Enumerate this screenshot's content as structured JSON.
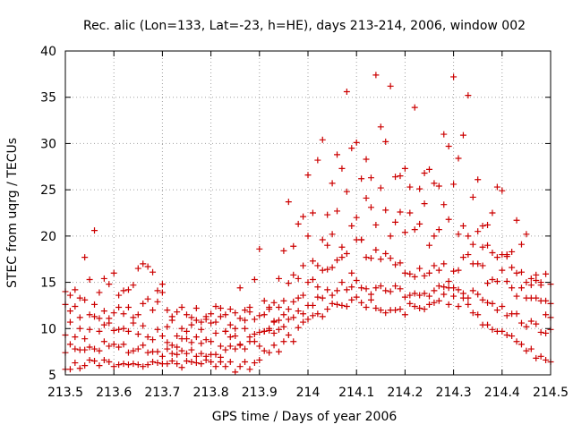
{
  "chart_data": {
    "type": "scatter",
    "title": "Rec. alic (Lon=133, Lat=-23, h=HE), days 213-214, 2006, window 002",
    "xlabel": "GPS time / Days of year 2006",
    "ylabel": "STEC from uqrg / TECUs",
    "xlim": [
      213.5,
      214.5
    ],
    "ylim": [
      5,
      40
    ],
    "x_ticks": [
      213.5,
      213.6,
      213.7,
      213.8,
      213.9,
      214.0,
      214.1,
      214.2,
      214.3,
      214.4,
      214.5
    ],
    "x_tick_labels": [
      "213.5",
      "213.6",
      "213.7",
      "213.8",
      "213.9",
      "214",
      "214.1",
      "214.2",
      "214.3",
      "214.4",
      "214.5"
    ],
    "y_ticks": [
      5,
      10,
      15,
      20,
      25,
      30,
      35,
      40
    ],
    "y_tick_labels": [
      "5",
      "10",
      "15",
      "20",
      "25",
      "30",
      "35",
      "40"
    ],
    "grid": true,
    "legend": "none",
    "marker": "plus",
    "marker_color": "#cc0000",
    "series": [
      {
        "x": [
          213.5,
          213.51,
          213.52,
          213.53,
          213.54,
          213.55,
          213.56,
          213.57,
          213.58,
          213.59,
          213.6,
          213.61,
          213.62,
          213.63,
          213.64,
          213.65,
          213.66,
          213.67,
          213.68,
          213.69,
          213.7,
          213.71,
          213.72,
          213.73,
          213.74,
          213.75,
          213.76,
          213.77,
          213.78,
          213.79,
          213.8,
          213.81,
          213.82,
          213.83,
          213.84,
          213.85,
          213.86,
          213.87,
          213.88,
          213.89,
          213.9,
          213.91,
          213.92,
          213.93,
          213.94,
          213.95,
          213.96,
          213.97,
          213.98,
          213.99,
          214.0,
          214.01,
          214.02,
          214.03,
          214.04,
          214.05,
          214.06,
          214.07,
          214.08,
          214.09,
          214.1,
          214.11,
          214.12,
          214.13,
          214.14,
          214.15,
          214.16,
          214.17,
          214.18,
          214.19,
          214.2,
          214.21,
          214.22,
          214.23,
          214.24,
          214.25,
          214.26,
          214.27,
          214.28,
          214.29,
          214.3,
          214.31,
          214.32,
          214.33,
          214.34,
          214.35,
          214.36,
          214.37,
          214.38,
          214.39,
          214.4,
          214.41,
          214.42,
          214.43,
          214.44,
          214.45,
          214.46,
          214.47,
          214.48,
          214.49,
          214.5
        ],
        "y": [
          14.0,
          13.6,
          14.2,
          13.3,
          17.7,
          15.3,
          20.6,
          13.9,
          15.4,
          14.8,
          16.0,
          13.6,
          14.1,
          14.2,
          14.7,
          16.5,
          17.0,
          16.7,
          16.1,
          14.1,
          14.8,
          12.0,
          11.3,
          11.8,
          12.3,
          11.5,
          11.2,
          12.2,
          10.7,
          11.0,
          11.6,
          12.4,
          12.2,
          11.5,
          12.1,
          11.7,
          14.4,
          12.0,
          12.3,
          15.3,
          18.6,
          13.0,
          12.3,
          12.8,
          15.4,
          18.4,
          23.7,
          18.9,
          21.3,
          22.1,
          26.6,
          22.5,
          28.2,
          30.4,
          22.3,
          25.7,
          28.8,
          27.3,
          35.6,
          29.5,
          30.1,
          26.2,
          28.3,
          26.3,
          37.4,
          31.8,
          30.2,
          36.2,
          26.4,
          26.5,
          27.3,
          25.3,
          33.9,
          25.1,
          26.8,
          27.2,
          25.7,
          25.4,
          31.0,
          29.7,
          37.2,
          28.4,
          30.9,
          35.2,
          24.2,
          26.1,
          21.1,
          21.2,
          22.5,
          25.3,
          24.9,
          18.0,
          18.3,
          21.7,
          19.1,
          20.2,
          15.4,
          15.8,
          15.0,
          15.9,
          14.8
        ]
      },
      {
        "x": [
          213.5,
          213.51,
          213.52,
          213.53,
          213.54,
          213.55,
          213.56,
          213.57,
          213.58,
          213.59,
          213.6,
          213.61,
          213.62,
          213.63,
          213.64,
          213.65,
          213.66,
          213.67,
          213.68,
          213.69,
          213.7,
          213.71,
          213.72,
          213.73,
          213.74,
          213.75,
          213.76,
          213.77,
          213.78,
          213.79,
          213.8,
          213.81,
          213.82,
          213.83,
          213.84,
          213.85,
          213.86,
          213.87,
          213.88,
          213.89,
          213.9,
          213.91,
          213.92,
          213.93,
          213.94,
          213.95,
          213.96,
          213.97,
          213.98,
          213.99,
          214.0,
          214.01,
          214.02,
          214.03,
          214.04,
          214.05,
          214.06,
          214.07,
          214.08,
          214.09,
          214.1,
          214.11,
          214.12,
          214.13,
          214.14,
          214.15,
          214.16,
          214.17,
          214.18,
          214.19,
          214.2,
          214.21,
          214.22,
          214.23,
          214.24,
          214.25,
          214.26,
          214.27,
          214.28,
          214.29,
          214.3,
          214.31,
          214.32,
          214.33,
          214.34,
          214.35,
          214.36,
          214.37,
          214.38,
          214.39,
          214.4,
          214.41,
          214.42,
          214.43,
          214.44,
          214.45,
          214.46,
          214.47,
          214.48,
          214.49,
          214.5
        ],
        "y": [
          12.6,
          11.9,
          12.4,
          11.2,
          13.1,
          11.5,
          12.6,
          11.1,
          11.9,
          11.1,
          11.7,
          12.3,
          11.6,
          12.3,
          11.2,
          11.5,
          12.7,
          13.2,
          12.0,
          12.9,
          13.9,
          10.2,
          10.9,
          9.2,
          10.0,
          9.7,
          10.4,
          10.9,
          9.9,
          11.3,
          10.6,
          10.7,
          11.3,
          9.7,
          10.4,
          10.0,
          11.1,
          10.9,
          11.8,
          11.0,
          11.4,
          11.5,
          12.1,
          10.8,
          12.3,
          13.0,
          14.9,
          15.8,
          15.4,
          16.8,
          20.0,
          17.3,
          16.8,
          19.6,
          19.0,
          20.2,
          22.7,
          18.8,
          24.8,
          21.1,
          22.0,
          19.6,
          24.1,
          23.1,
          21.2,
          25.2,
          22.8,
          20.0,
          21.5,
          22.6,
          20.4,
          22.5,
          20.7,
          21.3,
          23.5,
          19.0,
          20.0,
          20.7,
          23.4,
          21.8,
          25.6,
          20.2,
          21.1,
          20.0,
          19.1,
          20.5,
          18.8,
          19.0,
          18.2,
          17.7,
          18.0,
          17.8,
          16.6,
          16.0,
          16.1,
          15.0,
          14.7,
          15.2,
          14.7,
          13.0,
          12.7
        ]
      },
      {
        "x": [
          213.5,
          213.51,
          213.52,
          213.53,
          213.54,
          213.55,
          213.56,
          213.57,
          213.58,
          213.59,
          213.6,
          213.61,
          213.62,
          213.63,
          213.64,
          213.65,
          213.66,
          213.67,
          213.68,
          213.69,
          213.7,
          213.71,
          213.72,
          213.73,
          213.74,
          213.75,
          213.76,
          213.77,
          213.78,
          213.79,
          213.8,
          213.81,
          213.82,
          213.83,
          213.84,
          213.85,
          213.86,
          213.87,
          213.88,
          213.89,
          213.9,
          213.91,
          213.92,
          213.93,
          213.94,
          213.95,
          213.96,
          213.97,
          213.98,
          213.99,
          214.0,
          214.01,
          214.02,
          214.03,
          214.04,
          214.05,
          214.06,
          214.07,
          214.08,
          214.09,
          214.1,
          214.11,
          214.12,
          214.13,
          214.14,
          214.15,
          214.16,
          214.17,
          214.18,
          214.19,
          214.2,
          214.21,
          214.22,
          214.23,
          214.24,
          214.25,
          214.26,
          214.27,
          214.28,
          214.29,
          214.3,
          214.31,
          214.32,
          214.33,
          214.34,
          214.35,
          214.36,
          214.37,
          214.38,
          214.39,
          214.4,
          214.41,
          214.42,
          214.43,
          214.44,
          214.45,
          214.46,
          214.47,
          214.48,
          214.49,
          214.5
        ],
        "y": [
          9.3,
          10.7,
          9.1,
          10.0,
          8.9,
          9.9,
          11.3,
          9.7,
          10.4,
          10.6,
          9.8,
          9.9,
          10.0,
          9.7,
          10.6,
          9.4,
          10.3,
          9.1,
          8.8,
          9.9,
          9.2,
          8.5,
          8.2,
          8.0,
          8.9,
          8.9,
          8.5,
          9.1,
          8.4,
          8.8,
          8.6,
          9.5,
          8.1,
          9.7,
          9.1,
          9.2,
          8.3,
          10.0,
          9.1,
          9.4,
          9.6,
          9.7,
          10.0,
          10.7,
          10.9,
          11.5,
          12.1,
          12.9,
          13.3,
          13.6,
          15.0,
          15.3,
          14.5,
          16.3,
          16.4,
          16.6,
          17.4,
          17.7,
          18.1,
          16.0,
          19.6,
          19.6,
          17.7,
          17.6,
          18.5,
          17.5,
          18.1,
          17.6,
          16.9,
          17.1,
          16.0,
          15.9,
          15.6,
          16.5,
          15.7,
          16.0,
          16.8,
          16.3,
          17.0,
          15.1,
          16.2,
          16.3,
          17.7,
          18.0,
          17.0,
          17.0,
          16.8,
          14.9,
          15.3,
          15.1,
          16.3,
          15.1,
          14.4,
          13.5,
          14.4,
          13.3,
          13.3,
          13.3,
          13.0,
          11.5,
          11.2
        ]
      },
      {
        "x": [
          213.5,
          213.51,
          213.52,
          213.53,
          213.54,
          213.55,
          213.56,
          213.57,
          213.58,
          213.59,
          213.6,
          213.61,
          213.62,
          213.63,
          213.64,
          213.65,
          213.66,
          213.67,
          213.68,
          213.69,
          213.7,
          213.71,
          213.72,
          213.73,
          213.74,
          213.75,
          213.76,
          213.77,
          213.78,
          213.79,
          213.8,
          213.81,
          213.82,
          213.83,
          213.84,
          213.85,
          213.86,
          213.87,
          213.88,
          213.89,
          213.9,
          213.91,
          213.92,
          213.93,
          213.94,
          213.95,
          213.96,
          213.97,
          213.98,
          213.99,
          214.0,
          214.01,
          214.02,
          214.03,
          214.04,
          214.05,
          214.06,
          214.07,
          214.08,
          214.09,
          214.1,
          214.11,
          214.12,
          214.13,
          214.14,
          214.15,
          214.16,
          214.17,
          214.18,
          214.19,
          214.2,
          214.21,
          214.22,
          214.23,
          214.24,
          214.25,
          214.26,
          214.27,
          214.28,
          214.29,
          214.3,
          214.31,
          214.32,
          214.33,
          214.34,
          214.35,
          214.36,
          214.37,
          214.38,
          214.39,
          214.4,
          214.41,
          214.42,
          214.43,
          214.44,
          214.45,
          214.46,
          214.47,
          214.48,
          214.49,
          214.5
        ],
        "y": [
          7.4,
          8.3,
          7.8,
          7.7,
          7.7,
          8.0,
          7.8,
          7.6,
          8.6,
          8.1,
          8.3,
          8.0,
          8.3,
          7.4,
          7.6,
          7.8,
          8.2,
          7.4,
          7.5,
          7.5,
          7.0,
          7.8,
          7.3,
          7.2,
          7.6,
          7.3,
          7.7,
          7.0,
          7.3,
          7.0,
          7.2,
          7.2,
          6.9,
          7.7,
          8.1,
          7.8,
          8.2,
          7.8,
          8.6,
          8.6,
          8.1,
          9.7,
          9.8,
          9.5,
          9.9,
          10.2,
          11.0,
          11.2,
          11.9,
          11.6,
          12.5,
          12.5,
          13.4,
          13.3,
          14.2,
          13.6,
          14.1,
          15.0,
          14.2,
          14.5,
          15.2,
          14.4,
          14.3,
          13.7,
          14.4,
          14.6,
          14.1,
          14.0,
          14.6,
          14.3,
          13.4,
          13.6,
          13.8,
          13.6,
          13.8,
          13.5,
          14.1,
          14.6,
          14.5,
          14.4,
          14.4,
          14.2,
          13.8,
          13.3,
          14.1,
          13.7,
          13.1,
          12.8,
          12.7,
          12.0,
          12.4,
          11.4,
          11.6,
          11.6,
          10.6,
          10.2,
          10.8,
          10.5,
          9.6,
          9.5,
          9.9
        ]
      },
      {
        "x": [
          213.5,
          213.51,
          213.52,
          213.53,
          213.54,
          213.55,
          213.56,
          213.57,
          213.58,
          213.59,
          213.6,
          213.61,
          213.62,
          213.63,
          213.64,
          213.65,
          213.66,
          213.67,
          213.68,
          213.69,
          213.7,
          213.71,
          213.72,
          213.73,
          213.74,
          213.75,
          213.76,
          213.77,
          213.78,
          213.79,
          213.8,
          213.81,
          213.82,
          213.83,
          213.84,
          213.85,
          213.86,
          213.87,
          213.88,
          213.89,
          213.9,
          213.91,
          213.92,
          213.93,
          213.94,
          213.95,
          213.96,
          213.97,
          213.98,
          213.99,
          214.0,
          214.01,
          214.02,
          214.03,
          214.04,
          214.05,
          214.06,
          214.07,
          214.08,
          214.09,
          214.1,
          214.11,
          214.12,
          214.13,
          214.14,
          214.15,
          214.16,
          214.17,
          214.18,
          214.19,
          214.2,
          214.21,
          214.22,
          214.23,
          214.24,
          214.25,
          214.26,
          214.27,
          214.28,
          214.29,
          214.3,
          214.31,
          214.32,
          214.33,
          214.34,
          214.35,
          214.36,
          214.37,
          214.38,
          214.39,
          214.4,
          214.41,
          214.42,
          214.43,
          214.44,
          214.45,
          214.46,
          214.47,
          214.48,
          214.49,
          214.5
        ],
        "y": [
          5.6,
          5.6,
          6.3,
          5.7,
          6.0,
          6.6,
          6.5,
          6.0,
          6.6,
          6.4,
          5.9,
          6.1,
          6.2,
          6.1,
          6.2,
          6.1,
          5.9,
          6.1,
          6.4,
          6.3,
          6.2,
          6.2,
          6.5,
          6.2,
          5.8,
          6.5,
          6.4,
          6.3,
          6.2,
          6.6,
          6.4,
          5.9,
          6.4,
          5.9,
          6.4,
          5.3,
          5.9,
          6.4,
          5.6,
          6.3,
          6.6,
          7.6,
          7.4,
          8.2,
          7.5,
          8.6,
          9.3,
          8.6,
          10.1,
          10.7,
          11.0,
          11.4,
          11.6,
          11.3,
          12.1,
          12.7,
          12.6,
          12.5,
          12.4,
          13.1,
          13.4,
          12.8,
          12.3,
          13.1,
          12.2,
          12.0,
          11.7,
          12.0,
          12.0,
          12.1,
          11.5,
          12.7,
          12.4,
          12.2,
          12.1,
          12.6,
          12.8,
          13.0,
          13.7,
          12.6,
          13.5,
          12.4,
          13.3,
          12.6,
          11.7,
          11.5,
          10.4,
          10.4,
          9.9,
          9.7,
          9.7,
          9.3,
          9.2,
          8.6,
          8.3,
          7.6,
          7.8,
          6.8,
          7.0,
          6.6,
          6.4
        ]
      }
    ]
  }
}
